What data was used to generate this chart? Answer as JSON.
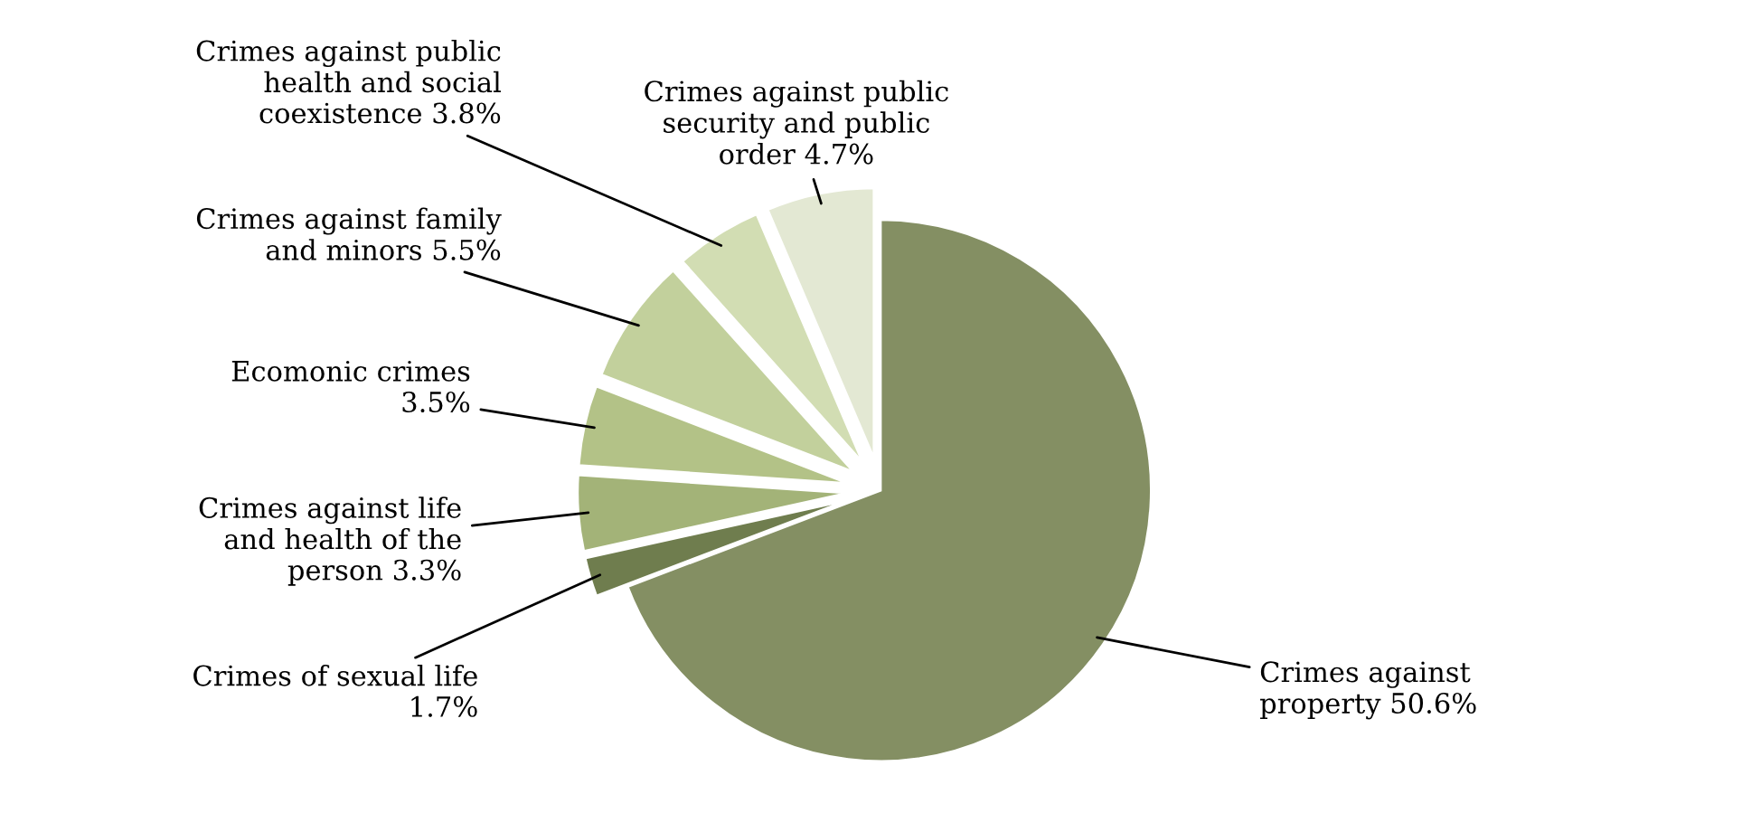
{
  "chart_data": {
    "type": "pie",
    "categories": [
      "Crimes against\nproperty 50.6%",
      "Crimes of sexual life\n1.7%",
      "Crimes against life\nand health of the\nperson 3.3%",
      "Ecomonic crimes\n3.5%",
      "Crimes against family\nand minors 5.5%",
      "Crimes against public\nhealth and social\ncoexistence 3.8%",
      "Crimes against public\nsecurity and public\norder 4.7%"
    ],
    "values": [
      50.6,
      1.7,
      3.3,
      3.5,
      5.5,
      3.8,
      4.7
    ],
    "colors": [
      "#848f63",
      "#6f7d4e",
      "#a3b378",
      "#b3c287",
      "#c2d09c",
      "#d2ddb3",
      "#e3e8d3"
    ]
  }
}
